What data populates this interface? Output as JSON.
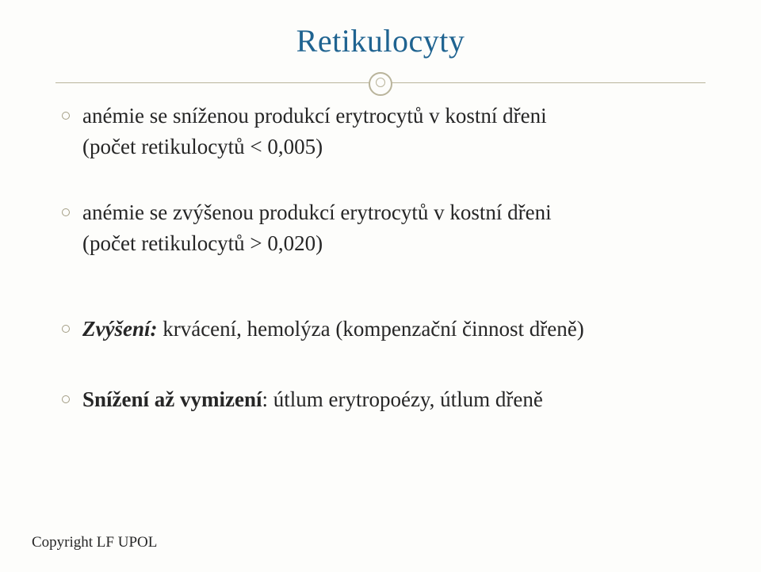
{
  "slide": {
    "title": "Retikulocyty",
    "bullets": [
      {
        "line1": "anémie se sníženou produkcí erytrocytů v kostní dřeni",
        "line2": "(počet retikulocytů < 0,005)"
      },
      {
        "line1": "anémie se zvýšenou produkcí erytrocytů v kostní dřeni",
        "line2": "(počet retikulocytů > 0,020)"
      },
      {
        "label": "Zvýšení:",
        "text": " krvácení, hemolýza (kompenzační činnost dřeně)"
      },
      {
        "label": "Snížení až vymizení",
        "text": ": útlum erytropoézy, útlum dřeně"
      }
    ],
    "footer": "Copyright LF UPOL"
  },
  "colors": {
    "title": "#1f6390",
    "divider": "#b9b49b",
    "text": "#262626",
    "background": "#fdfdfb"
  },
  "typography": {
    "title_fontsize": 40,
    "body_fontsize": 27,
    "footer_fontsize": 19,
    "font_family": "Georgia, serif"
  }
}
